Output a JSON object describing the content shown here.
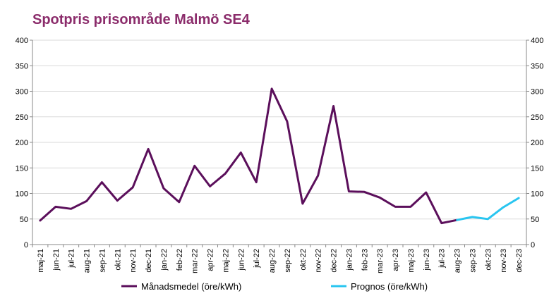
{
  "chart_data": {
    "type": "line",
    "title": "Spotpris prisområde Malmö SE4",
    "xlabel": "",
    "ylabel": "",
    "ylim": [
      0,
      400
    ],
    "yticks": [
      0,
      50,
      100,
      150,
      200,
      250,
      300,
      350,
      400
    ],
    "y_axis_both_sides": true,
    "grid": true,
    "legend_position": "bottom",
    "categories": [
      "maj-21",
      "jun-21",
      "jul-21",
      "aug-21",
      "sep-21",
      "okt-21",
      "nov-21",
      "dec-21",
      "jan-22",
      "feb-22",
      "mar-22",
      "apr-22",
      "maj-22",
      "jun-22",
      "jul-22",
      "aug-22",
      "sep-22",
      "okt-22",
      "nov-22",
      "dec-22",
      "jan-23",
      "feb-23",
      "mar-23",
      "apr-23",
      "maj-23",
      "jun-23",
      "jul-23",
      "aug-23",
      "sep-23",
      "okt-23",
      "nov-23",
      "dec-23"
    ],
    "series": [
      {
        "name": "Månadsmedel (öre/kWh)",
        "color": "#5B0F5B",
        "values": [
          47,
          74,
          70,
          85,
          122,
          86,
          112,
          187,
          110,
          83,
          154,
          114,
          139,
          180,
          122,
          305,
          241,
          80,
          135,
          271,
          104,
          103,
          92,
          74,
          74,
          102,
          42,
          48,
          null,
          null,
          null,
          null
        ]
      },
      {
        "name": "Prognos (öre/kWh)",
        "color": "#29C5F0",
        "values": [
          null,
          null,
          null,
          null,
          null,
          null,
          null,
          null,
          null,
          null,
          null,
          null,
          null,
          null,
          null,
          null,
          null,
          null,
          null,
          null,
          null,
          null,
          null,
          null,
          null,
          null,
          null,
          48,
          54,
          50,
          73,
          91
        ]
      }
    ]
  }
}
